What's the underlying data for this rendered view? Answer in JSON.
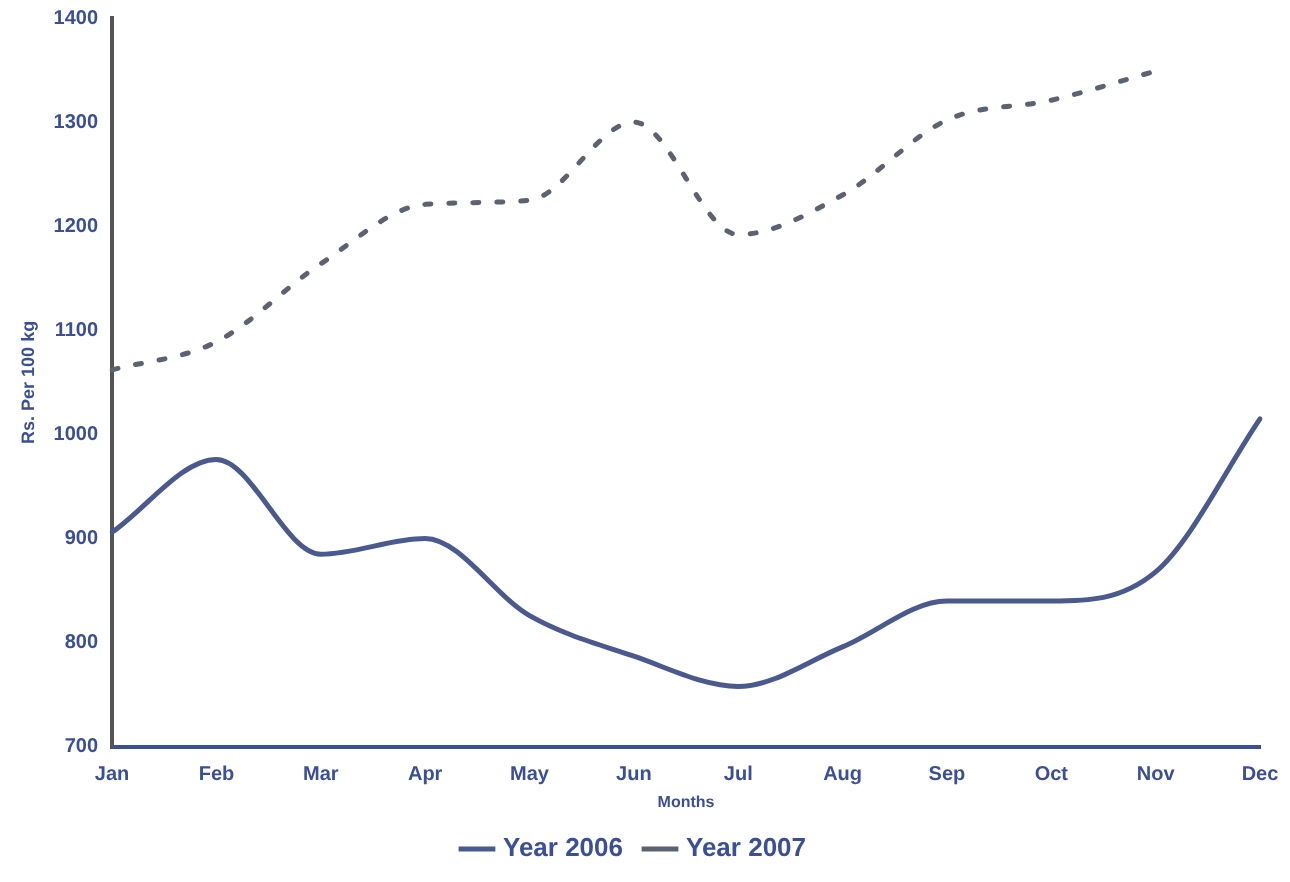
{
  "chart_data": {
    "type": "line",
    "xlabel": "Months",
    "ylabel": "Rs. Per 100 kg",
    "categories": [
      "Jan",
      "Feb",
      "Mar",
      "Apr",
      "May",
      "Jun",
      "Jul",
      "Aug",
      "Sep",
      "Oct",
      "Nov",
      "Dec"
    ],
    "series": [
      {
        "name": "Year 2006",
        "color": "#4a5a8e",
        "line_style": "solid",
        "values": [
          906,
          976,
          885,
          900,
          826,
          787,
          758,
          796,
          840,
          840,
          868,
          1015
        ]
      },
      {
        "name": "Year 2007",
        "color": "#5c6272",
        "line_style": "dotted",
        "values": [
          1062,
          1089,
          1164,
          1221,
          1225,
          1300,
          1192,
          1230,
          1302,
          1321,
          1349,
          null
        ]
      }
    ],
    "ylim": [
      700,
      1400
    ],
    "yticks": [
      700,
      800,
      900,
      1000,
      1100,
      1200,
      1300,
      1400
    ],
    "grid": false,
    "legend": "bottom",
    "marker": "none"
  }
}
